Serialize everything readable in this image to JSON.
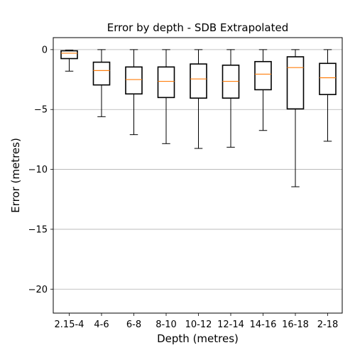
{
  "chart_data": {
    "type": "box",
    "title": "Error by depth - SDB Extrapolated",
    "xlabel": "Depth (metres)",
    "ylabel": "Error (metres)",
    "ylim": [
      -22,
      1
    ],
    "yticks": [
      0,
      -5,
      -10,
      -15,
      -20
    ],
    "ytick_labels": [
      "0",
      "−5",
      "−10",
      "−15",
      "−20"
    ],
    "grid": "y",
    "categories": [
      "2.15-4",
      "4-6",
      "6-8",
      "8-10",
      "10-12",
      "12-14",
      "14-16",
      "16-18",
      "2-18"
    ],
    "boxes": [
      {
        "whisker_low": -1.8,
        "q1": -0.75,
        "median": -0.3,
        "q3": -0.1,
        "whisker_high": -0.05
      },
      {
        "whisker_low": -5.6,
        "q1": -2.95,
        "median": -1.75,
        "q3": -1.05,
        "whisker_high": 0.0
      },
      {
        "whisker_low": -7.1,
        "q1": -3.7,
        "median": -2.5,
        "q3": -1.45,
        "whisker_high": 0.0
      },
      {
        "whisker_low": -7.85,
        "q1": -4.0,
        "median": -2.65,
        "q3": -1.45,
        "whisker_high": 0.0
      },
      {
        "whisker_low": -8.25,
        "q1": -4.05,
        "median": -2.45,
        "q3": -1.2,
        "whisker_high": 0.0
      },
      {
        "whisker_low": -8.15,
        "q1": -4.05,
        "median": -2.65,
        "q3": -1.3,
        "whisker_high": 0.0
      },
      {
        "whisker_low": -6.75,
        "q1": -3.35,
        "median": -2.05,
        "q3": -1.0,
        "whisker_high": 0.0
      },
      {
        "whisker_low": -11.45,
        "q1": -4.95,
        "median": -1.5,
        "q3": -0.6,
        "whisker_high": 0.0
      },
      {
        "whisker_low": -7.65,
        "q1": -3.75,
        "median": -2.35,
        "q3": -1.15,
        "whisker_high": 0.0
      }
    ],
    "colors": {
      "box": "#000000",
      "median": "#ff7f0e",
      "grid": "#b0b0b0"
    }
  }
}
